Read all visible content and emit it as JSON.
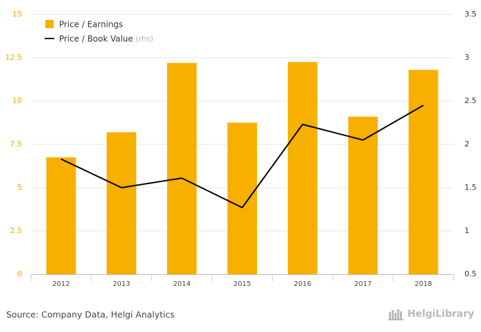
{
  "chart_data": {
    "type": "bar",
    "categories": [
      "2012",
      "2013",
      "2014",
      "2015",
      "2016",
      "2017",
      "2018"
    ],
    "series": [
      {
        "name": "Price / Earnings",
        "type": "bar",
        "axis": "left",
        "color": "#f7b000",
        "values": [
          6.75,
          8.2,
          12.2,
          8.75,
          12.25,
          9.1,
          11.8
        ]
      },
      {
        "name": "Price / Book Value",
        "type": "line",
        "axis": "right",
        "color": "#000000",
        "values": [
          1.83,
          1.5,
          1.61,
          1.27,
          2.23,
          2.05,
          2.45
        ]
      }
    ],
    "y_left": {
      "min": 0,
      "max": 15,
      "ticks": [
        "0",
        "2.5",
        "5",
        "7.5",
        "10",
        "12.5",
        "15"
      ]
    },
    "y_right": {
      "min": 0.5,
      "max": 3.5,
      "ticks": [
        "0.5",
        "1",
        "1.5",
        "2",
        "2.5",
        "3",
        "3.5"
      ]
    },
    "legend": {
      "position": "top-left",
      "items": [
        {
          "label": "Price / Earnings",
          "suffix": ""
        },
        {
          "label": "Price / Book Value",
          "suffix": "(rhs)"
        }
      ]
    },
    "grid": true
  },
  "footer": {
    "source": "Source: Company Data, Helgi Analytics",
    "logo_text": "HelgiLibrary",
    "logo_icon": "library-icon"
  }
}
